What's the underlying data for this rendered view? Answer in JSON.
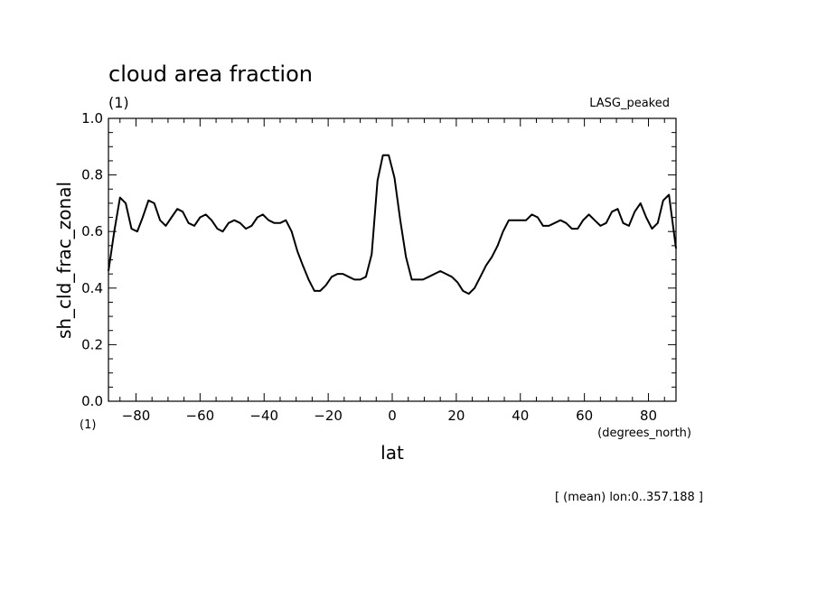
{
  "chart_data": {
    "type": "line",
    "title": "cloud area fraction",
    "y_units": "(1)",
    "x_units_corner": "(1)",
    "model": "LASG_peaked",
    "ylabel": "sh_cld_frac_zonal",
    "xlabel": "lat",
    "x_units": "(degrees_north)",
    "footnote": "[ (mean) lon:0..357.188 ]",
    "xlim": [
      -88.6,
      88.6
    ],
    "ylim": [
      0.0,
      1.0
    ],
    "x_ticks": [
      -80,
      -60,
      -40,
      -20,
      0,
      20,
      40,
      60,
      80
    ],
    "x_tick_labels": [
      "−80",
      "−60",
      "−40",
      "−20",
      "0",
      "20",
      "40",
      "60",
      "80"
    ],
    "y_ticks": [
      0.0,
      0.2,
      0.4,
      0.6,
      0.8,
      1.0
    ],
    "y_tick_labels": [
      "0.0",
      "0.2",
      "0.4",
      "0.6",
      "0.8",
      "1.0"
    ],
    "grid": false,
    "series": [
      {
        "x": [
          -88.6,
          -86.8,
          -85,
          -83.2,
          -81.4,
          -79.6,
          -77.9,
          -76.1,
          -74.3,
          -72.5,
          -70.7,
          -68.9,
          -67.1,
          -65.4,
          -63.6,
          -61.8,
          -60,
          -58.2,
          -56.4,
          -54.6,
          -52.9,
          -51.1,
          -49.3,
          -47.5,
          -45.7,
          -43.9,
          -42.1,
          -40.4,
          -38.6,
          -36.8,
          -35,
          -33.2,
          -31.4,
          -29.6,
          -27.9,
          -26.1,
          -24.3,
          -22.5,
          -20.7,
          -18.9,
          -17.1,
          -15.4,
          -13.6,
          -11.8,
          -10,
          -8.2,
          -6.4,
          -4.6,
          -2.9,
          -1.1,
          0.7,
          2.5,
          4.3,
          6.1,
          7.9,
          9.6,
          11.4,
          13.2,
          15,
          16.8,
          18.6,
          20.4,
          22.1,
          23.9,
          25.7,
          27.5,
          29.3,
          31.1,
          32.9,
          34.6,
          36.4,
          38.2,
          40,
          41.8,
          43.6,
          45.4,
          47.1,
          48.9,
          50.7,
          52.5,
          54.3,
          56.1,
          57.9,
          59.6,
          61.4,
          63.2,
          65,
          66.8,
          68.6,
          70.4,
          72.1,
          73.9,
          75.7,
          77.5,
          79.3,
          81.1,
          82.9,
          84.6,
          86.4,
          88.6
        ],
        "y": [
          0.46,
          0.6,
          0.72,
          0.7,
          0.61,
          0.6,
          0.65,
          0.71,
          0.7,
          0.64,
          0.62,
          0.65,
          0.68,
          0.67,
          0.63,
          0.62,
          0.65,
          0.66,
          0.64,
          0.61,
          0.6,
          0.63,
          0.64,
          0.63,
          0.61,
          0.62,
          0.65,
          0.66,
          0.64,
          0.63,
          0.63,
          0.64,
          0.6,
          0.53,
          0.48,
          0.43,
          0.39,
          0.39,
          0.41,
          0.44,
          0.45,
          0.45,
          0.44,
          0.43,
          0.43,
          0.44,
          0.52,
          0.78,
          0.87,
          0.87,
          0.79,
          0.64,
          0.51,
          0.43,
          0.43,
          0.43,
          0.44,
          0.45,
          0.46,
          0.45,
          0.44,
          0.42,
          0.39,
          0.38,
          0.4,
          0.44,
          0.48,
          0.51,
          0.55,
          0.6,
          0.64,
          0.64,
          0.64,
          0.64,
          0.66,
          0.65,
          0.62,
          0.62,
          0.63,
          0.64,
          0.63,
          0.61,
          0.61,
          0.64,
          0.66,
          0.64,
          0.62,
          0.63,
          0.67,
          0.68,
          0.63,
          0.62,
          0.67,
          0.7,
          0.65,
          0.61,
          0.63,
          0.71,
          0.73,
          0.54
        ]
      }
    ]
  }
}
